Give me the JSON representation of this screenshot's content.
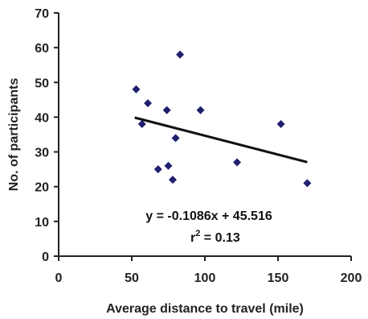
{
  "chart_data": {
    "type": "scatter",
    "xlabel": "Average distance to travel (mile)",
    "ylabel": "No. of participants",
    "xlim": [
      0,
      200
    ],
    "ylim": [
      0,
      70
    ],
    "xticks": [
      0,
      50,
      100,
      150,
      200
    ],
    "yticks": [
      0,
      10,
      20,
      30,
      40,
      50,
      60,
      70
    ],
    "grid": false,
    "points": [
      {
        "x": 53,
        "y": 48
      },
      {
        "x": 57,
        "y": 38
      },
      {
        "x": 61,
        "y": 44
      },
      {
        "x": 68,
        "y": 25
      },
      {
        "x": 74,
        "y": 42
      },
      {
        "x": 75,
        "y": 26
      },
      {
        "x": 78,
        "y": 22
      },
      {
        "x": 80,
        "y": 34
      },
      {
        "x": 83,
        "y": 58
      },
      {
        "x": 97,
        "y": 42
      },
      {
        "x": 122,
        "y": 27
      },
      {
        "x": 152,
        "y": 38
      },
      {
        "x": 170,
        "y": 21
      }
    ],
    "trendline": {
      "slope": -0.1086,
      "intercept": 45.516,
      "x_range": [
        52,
        170
      ]
    },
    "equation_text": "y = -0.1086x + 45.516",
    "r2_text_main": "r",
    "r2_text_sup": "2",
    "r2_text_rest": " = 0.13",
    "marker_color": "#1f1f6e",
    "line_color": "#111111"
  }
}
